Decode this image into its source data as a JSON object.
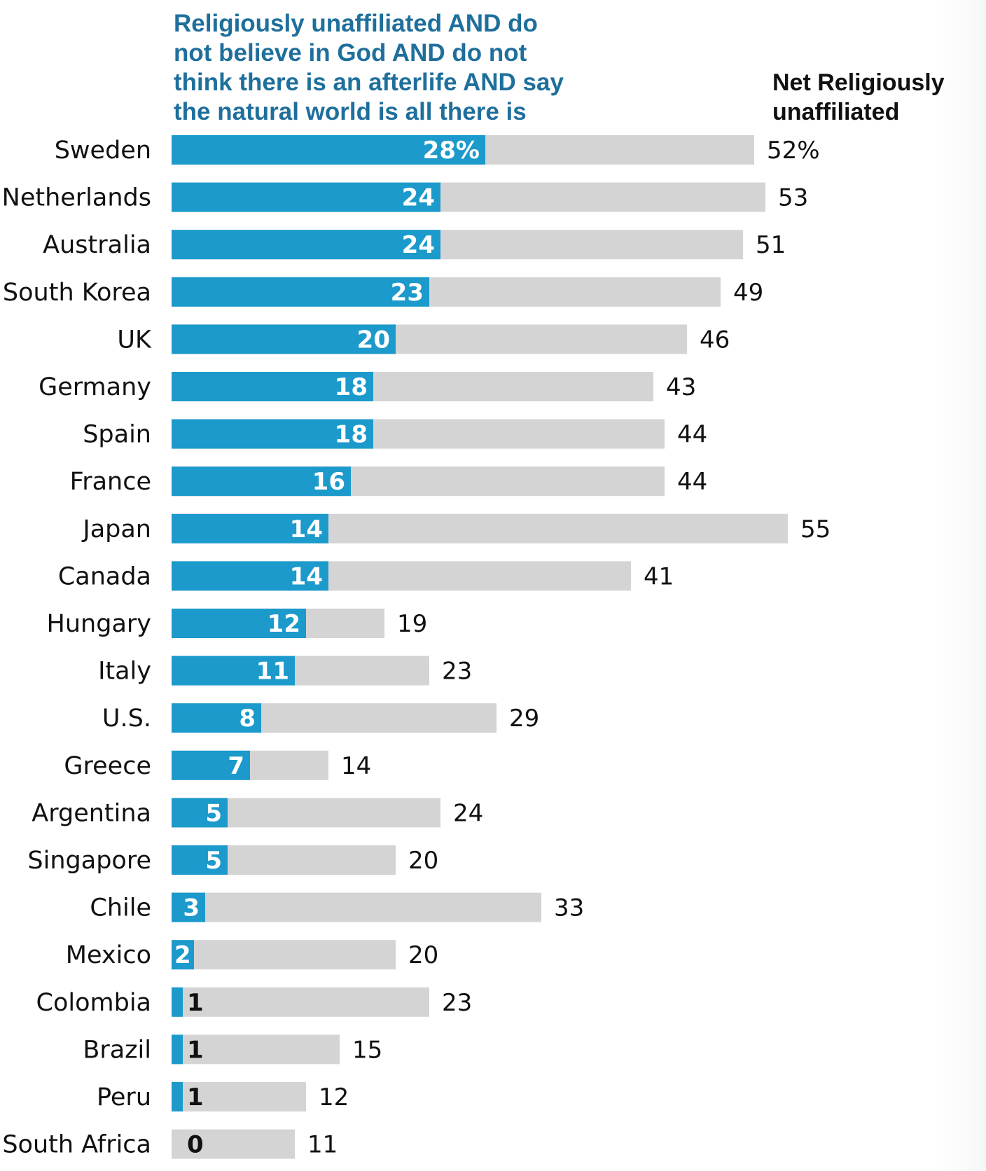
{
  "chart_data": {
    "type": "bar",
    "title_series": "Religiously unaffiliated AND do not believe in God AND do not think there is an afterlife AND say the natural world is all there is",
    "title_lines": [
      "Religiously unaffiliated AND do",
      "not believe in God AND do not",
      "think there is an afterlife AND say",
      "the natural world is all there is"
    ],
    "total_header_lines": [
      "Net Religiously",
      "unaffiliated"
    ],
    "categories": [
      "Sweden",
      "Netherlands",
      "Australia",
      "South Korea",
      "UK",
      "Germany",
      "Spain",
      "France",
      "Japan",
      "Canada",
      "Hungary",
      "Italy",
      "U.S.",
      "Greece",
      "Argentina",
      "Singapore",
      "Chile",
      "Mexico",
      "Colombia",
      "Brazil",
      "Peru",
      "South Africa"
    ],
    "series": [
      {
        "name": "Religiously unaffiliated AND do not believe in God AND do not think there is an afterlife AND say the natural world is all there is",
        "values": [
          28,
          24,
          24,
          23,
          20,
          18,
          18,
          16,
          14,
          14,
          12,
          11,
          8,
          7,
          5,
          5,
          3,
          2,
          1,
          1,
          1,
          0
        ],
        "labels": [
          "28%",
          "24",
          "24",
          "23",
          "20",
          "18",
          "18",
          "16",
          "14",
          "14",
          "12",
          "11",
          "8",
          "7",
          "5",
          "5",
          "3",
          "2",
          "1",
          "1",
          "1",
          "0"
        ]
      },
      {
        "name": "Net Religiously unaffiliated",
        "values": [
          52,
          53,
          51,
          49,
          46,
          43,
          44,
          44,
          55,
          41,
          19,
          23,
          29,
          14,
          24,
          20,
          33,
          20,
          23,
          15,
          12,
          11
        ],
        "labels": [
          "52%",
          "53",
          "51",
          "49",
          "46",
          "43",
          "44",
          "44",
          "55",
          "41",
          "19",
          "23",
          "29",
          "14",
          "24",
          "20",
          "33",
          "20",
          "23",
          "15",
          "12",
          "11"
        ]
      }
    ],
    "xlim": [
      0,
      60
    ],
    "grid": false,
    "legend": "none",
    "colors": {
      "series_blue": "#1b9acb",
      "total_gray": "#d4d4d4",
      "title_blue": "#1f6f9c",
      "text": "#111111",
      "inside_label": "#ffffff"
    }
  }
}
